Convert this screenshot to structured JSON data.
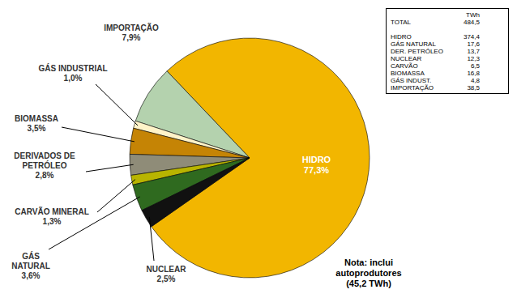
{
  "chart_data": {
    "type": "pie",
    "categories": [
      "HIDRO",
      "IMPORTAÇÃO",
      "GÁS INDUSTRIAL",
      "BIOMASSA",
      "DERIVADOS DE PETRÓLEO",
      "CARVÃO MINERAL",
      "GÁS NATURAL",
      "NUCLEAR"
    ],
    "values": [
      77.3,
      7.9,
      1.0,
      3.5,
      2.8,
      1.3,
      3.6,
      2.5
    ],
    "value_labels": [
      "77,3%",
      "7,9%",
      "1,0%",
      "3,5%",
      "2,8%",
      "1,3%",
      "3,6%",
      "2,5%"
    ],
    "colors": [
      "#f2b600",
      "#b4d2ae",
      "#fff3c8",
      "#c58405",
      "#8f8c78",
      "#b8b400",
      "#2f6a1f",
      "#111111"
    ],
    "data_labels": true,
    "annotations": [
      "Nota: inclui autoprodutores (45,2 TWh)"
    ]
  },
  "table": {
    "header": "TWh",
    "total": [
      "TOTAL",
      "484,5"
    ],
    "rows": [
      [
        "HIDRO",
        "374,4"
      ],
      [
        "GÁS NATURAL",
        "17,6"
      ],
      [
        "DER. PETRÓLEO",
        "13,7"
      ],
      [
        "NUCLEAR",
        "12,3"
      ],
      [
        "CARVÃO",
        "6,5"
      ],
      [
        "BIOMASSA",
        "16,8"
      ],
      [
        "GÁS INDUST.",
        "4,8"
      ],
      [
        "IMPORTAÇÃO",
        "38,5"
      ]
    ]
  }
}
